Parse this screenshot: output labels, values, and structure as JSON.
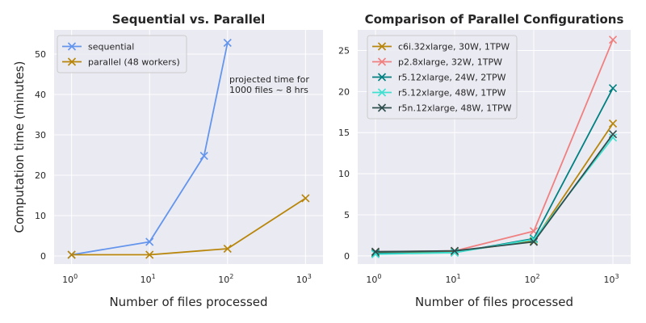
{
  "chart_data": [
    {
      "type": "line",
      "title": "Sequential vs. Parallel",
      "xlabel": "Number of files processed",
      "ylabel": "Computation time (minutes)",
      "xscale": "log",
      "xlim": [
        1,
        1000
      ],
      "ylim": [
        -2,
        56
      ],
      "xticks": [
        {
          "value": 1,
          "base": "10",
          "exp": "0"
        },
        {
          "value": 10,
          "base": "10",
          "exp": "1"
        },
        {
          "value": 100,
          "base": "10",
          "exp": "2"
        },
        {
          "value": 1000,
          "base": "10",
          "exp": "3"
        }
      ],
      "yticks": [
        "0",
        "10",
        "20",
        "30",
        "40",
        "50"
      ],
      "grid": true,
      "legend_position": "top-left",
      "series": [
        {
          "name": "sequential",
          "color": "#6495ed",
          "x": [
            1,
            10,
            50,
            100
          ],
          "y": [
            0.3,
            3.5,
            24.8,
            52.8
          ]
        },
        {
          "name": "parallel (48 workers)",
          "color": "#b8860b",
          "x": [
            1,
            10,
            100,
            1000
          ],
          "y": [
            0.3,
            0.3,
            1.8,
            14.3
          ]
        }
      ],
      "annotation": [
        "projected time for",
        "1000 files ~ 8 hrs"
      ]
    },
    {
      "type": "line",
      "title": "Comparison of Parallel Configurations",
      "xlabel": "Number of files processed",
      "ylabel": "",
      "xscale": "log",
      "xlim": [
        1,
        1000
      ],
      "ylim": [
        -1,
        27.5
      ],
      "xticks": [
        {
          "value": 1,
          "base": "10",
          "exp": "0"
        },
        {
          "value": 10,
          "base": "10",
          "exp": "1"
        },
        {
          "value": 100,
          "base": "10",
          "exp": "2"
        },
        {
          "value": 1000,
          "base": "10",
          "exp": "3"
        }
      ],
      "yticks": [
        "0",
        "5",
        "10",
        "15",
        "20",
        "25"
      ],
      "grid": true,
      "legend_position": "top-left",
      "series": [
        {
          "name": "c6i.32xlarge, 30W, 1TPW",
          "color": "#b8860b",
          "x": [
            1,
            10,
            100,
            1000
          ],
          "y": [
            0.4,
            0.5,
            1.8,
            16.1
          ]
        },
        {
          "name": "p2.8xlarge, 32W, 1TPW",
          "color": "#f08080",
          "x": [
            1,
            10,
            100,
            1000
          ],
          "y": [
            0.5,
            0.6,
            3.0,
            26.3
          ]
        },
        {
          "name": "r5.12xlarge, 24W, 2TPW",
          "color": "#008080",
          "x": [
            1,
            10,
            100,
            1000
          ],
          "y": [
            0.3,
            0.4,
            2.1,
            20.4
          ]
        },
        {
          "name": "r5.12xlarge, 48W, 1TPW",
          "color": "#40e0d0",
          "x": [
            1,
            10,
            100,
            1000
          ],
          "y": [
            0.2,
            0.4,
            2.0,
            14.4
          ]
        },
        {
          "name": "r5n.12xlarge, 48W, 1TPW",
          "color": "#2f4f4f",
          "x": [
            1,
            10,
            100,
            1000
          ],
          "y": [
            0.5,
            0.6,
            1.7,
            14.8
          ]
        }
      ]
    }
  ]
}
